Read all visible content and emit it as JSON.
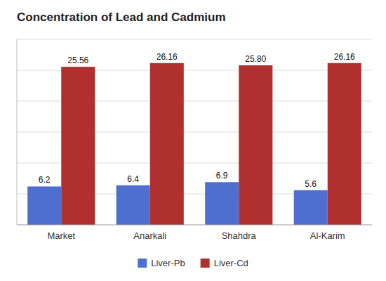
{
  "chart_data": {
    "type": "bar",
    "title": "Concentration of Lead and Cadmium",
    "categories": [
      "Market",
      "Anarkali",
      "Shahdra",
      "Al-Karim"
    ],
    "series": [
      {
        "name": "Liver-Pb",
        "color": "#4F6FD0",
        "values": [
          6.2,
          6.4,
          6.9,
          5.6
        ]
      },
      {
        "name": "Liver-Cd",
        "color": "#B03030",
        "values": [
          25.56,
          26.16,
          25.8,
          26.16
        ],
        "value_labels": [
          "25.56",
          "26.16",
          "25.80",
          "26.16"
        ]
      }
    ],
    "ylim": [
      0,
      30
    ],
    "yticks": [
      5,
      10,
      15,
      20,
      25,
      30
    ],
    "grid": true,
    "legend": "bottom",
    "data_labels": true,
    "tick_labels": "x"
  }
}
